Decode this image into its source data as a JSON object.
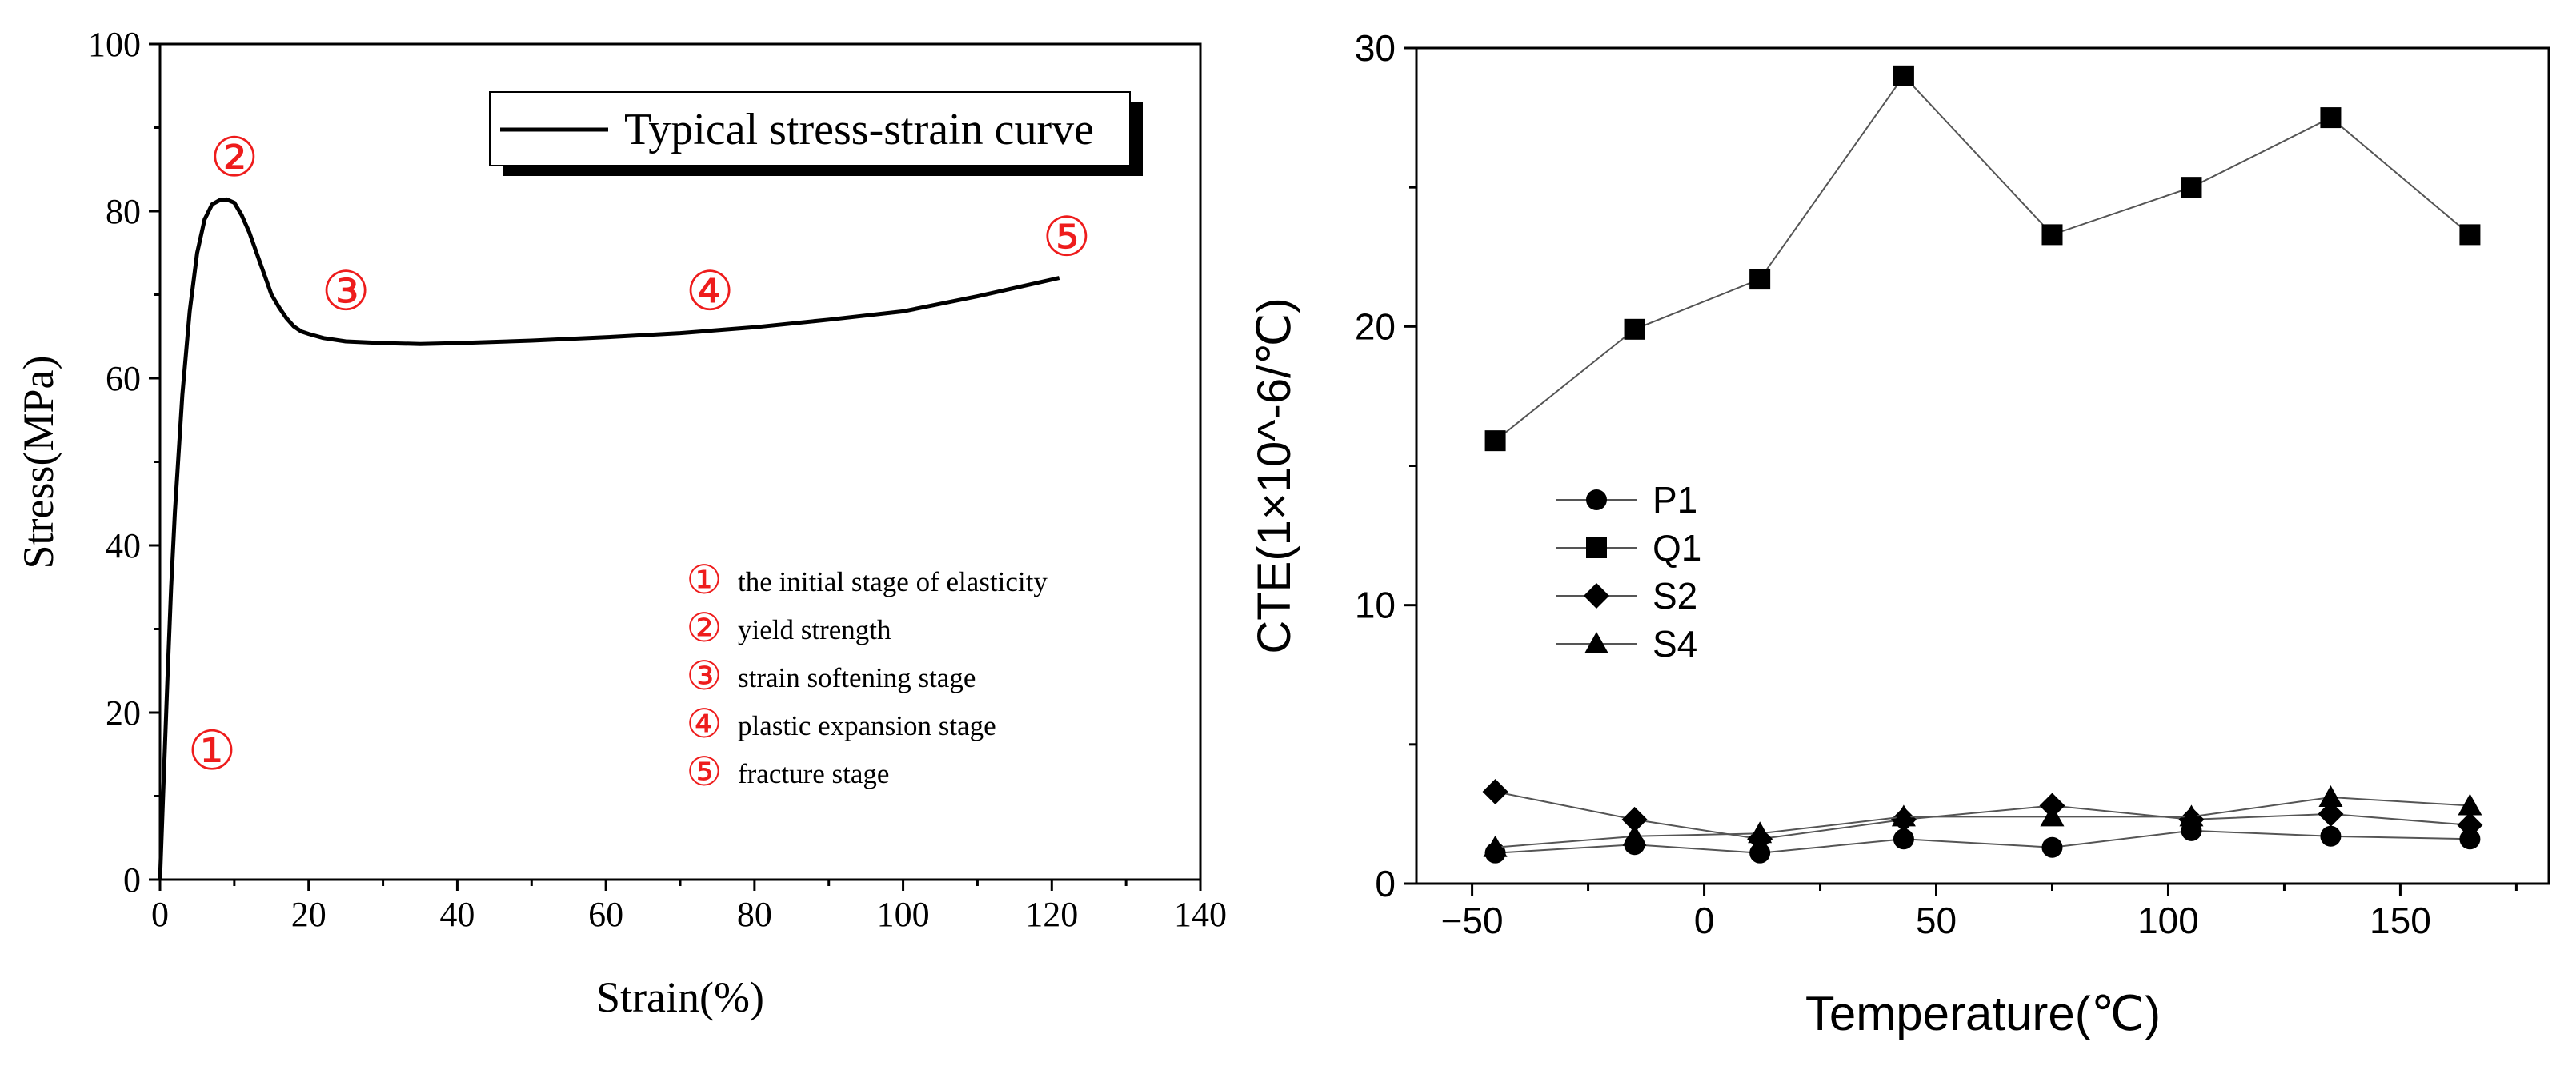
{
  "chart_data": [
    {
      "type": "line",
      "title": "",
      "xlabel": "Strain(%)",
      "ylabel": "Stress(MPa)",
      "xlim": [
        0,
        140
      ],
      "ylim": [
        0,
        100
      ],
      "xticks": [
        "0",
        "20",
        "40",
        "60",
        "80",
        "100",
        "120",
        "140"
      ],
      "yticks": [
        "0",
        "20",
        "40",
        "60",
        "80",
        "100"
      ],
      "legend": {
        "position": "top-right",
        "entries": [
          "Typical stress-strain curve"
        ]
      },
      "series": [
        {
          "name": "Typical stress-strain curve",
          "x": [
            0,
            0.5,
            1,
            1.5,
            2,
            3,
            4,
            5,
            6,
            7,
            8,
            9,
            10,
            11,
            12,
            13,
            14,
            15,
            16,
            17,
            18,
            19,
            20,
            22,
            25,
            30,
            35,
            40,
            50,
            60,
            70,
            80,
            90,
            100,
            110,
            121
          ],
          "y": [
            0,
            12,
            24,
            35,
            44,
            58,
            68,
            75,
            79,
            80.8,
            81.3,
            81.4,
            81,
            79.5,
            77.5,
            75,
            72.5,
            70,
            68.5,
            67.2,
            66.2,
            65.6,
            65.3,
            64.8,
            64.4,
            64.2,
            64.1,
            64.2,
            64.5,
            64.9,
            65.4,
            66.1,
            67,
            68,
            69.8,
            72
          ]
        }
      ],
      "stage_markers": [
        {
          "symbol": "①",
          "x": 7,
          "y": 15.5
        },
        {
          "symbol": "②",
          "x": 10,
          "y": 86.5
        },
        {
          "symbol": "③",
          "x": 25,
          "y": 70.5
        },
        {
          "symbol": "④",
          "x": 74,
          "y": 70.5
        },
        {
          "symbol": "⑤",
          "x": 122,
          "y": 77
        }
      ],
      "annotation_list": [
        {
          "symbol": "①",
          "text": "the initial stage of elasticity"
        },
        {
          "symbol": "②",
          "text": "yield strength"
        },
        {
          "symbol": "③",
          "text": "strain softening stage"
        },
        {
          "symbol": "④",
          "text": "plastic expansion stage"
        },
        {
          "symbol": "⑤",
          "text": "fracture stage"
        }
      ],
      "colors": {
        "line": "#000000",
        "markers": "#ee1c1c"
      }
    },
    {
      "type": "line",
      "title": "",
      "xlabel": "Temperature(℃)",
      "ylabel": "CTE(1×10^-6/℃)",
      "xlim": [
        -62,
        182
      ],
      "ylim": [
        0,
        30
      ],
      "xticks": [
        "−50",
        "0",
        "50",
        "100",
        "150"
      ],
      "yticks": [
        "0",
        "10",
        "20",
        "30"
      ],
      "legend": {
        "position": "middle-left",
        "entries": [
          "P1",
          "Q1",
          "S2",
          "S4"
        ]
      },
      "x": [
        -45,
        -15,
        12,
        43,
        75,
        105,
        135,
        165
      ],
      "series": [
        {
          "name": "P1",
          "marker": "circle",
          "values": [
            1.1,
            1.4,
            1.1,
            1.6,
            1.3,
            1.9,
            1.7,
            1.6
          ]
        },
        {
          "name": "Q1",
          "marker": "square",
          "values": [
            15.9,
            19.9,
            21.7,
            29.0,
            23.3,
            25.0,
            27.5,
            23.3
          ]
        },
        {
          "name": "S2",
          "marker": "diamond",
          "values": [
            3.3,
            2.3,
            1.6,
            2.3,
            2.8,
            2.3,
            2.5,
            2.1
          ]
        },
        {
          "name": "S4",
          "marker": "triangle",
          "values": [
            1.3,
            1.7,
            1.8,
            2.4,
            2.4,
            2.4,
            3.1,
            2.8
          ]
        }
      ]
    }
  ]
}
